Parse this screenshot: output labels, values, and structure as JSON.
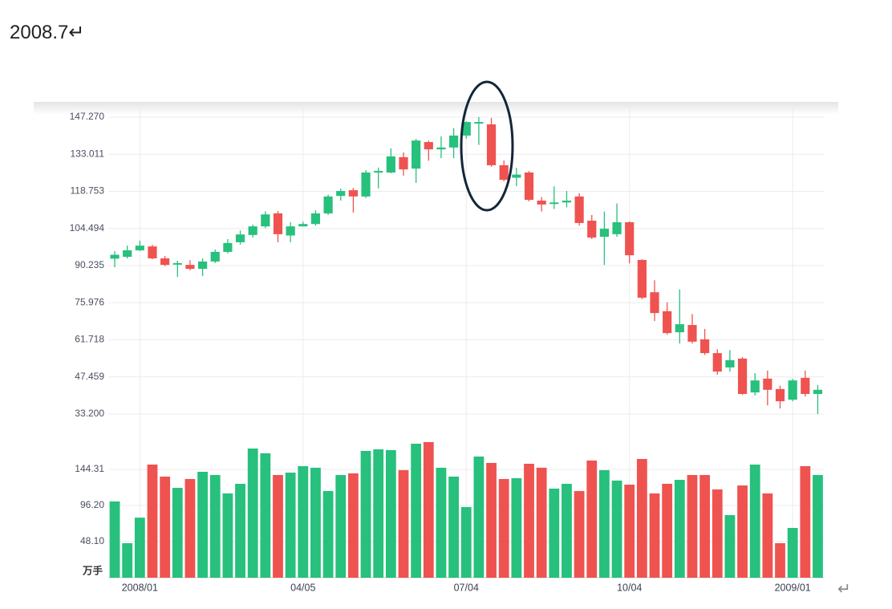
{
  "heading": "2008.7↵",
  "paragraph_mark": "↵",
  "chart_data": {
    "type": "candlestick",
    "categories": [
      null,
      null,
      "2008/01",
      null,
      null,
      null,
      null,
      null,
      null,
      null,
      null,
      null,
      null,
      null,
      null,
      "04/05",
      null,
      null,
      null,
      null,
      null,
      null,
      null,
      null,
      null,
      null,
      null,
      null,
      "07/04",
      null,
      null,
      null,
      null,
      null,
      null,
      null,
      null,
      null,
      null,
      null,
      null,
      "10/04",
      null,
      null,
      null,
      null,
      null,
      null,
      null,
      null,
      null,
      null,
      null,
      null,
      "2009/01",
      null,
      null
    ],
    "open": [
      92.9,
      93.6,
      96.1,
      97.6,
      93.0,
      90.6,
      90.5,
      89.0,
      91.8,
      95.5,
      99.2,
      102.0,
      105.3,
      110.3,
      101.8,
      105.3,
      106.2,
      110.3,
      117.0,
      119.2,
      116.8,
      126.0,
      126.0,
      131.9,
      127.5,
      137.7,
      134.9,
      135.6,
      140.2,
      144.8,
      144.5,
      128.8,
      124.0,
      126.0,
      115.2,
      113.9,
      114.5,
      116.8,
      107.5,
      101.3,
      102.3,
      106.9,
      92.4,
      80.0,
      72.7,
      64.6,
      67.4,
      61.9,
      56.6,
      51.1,
      54.5,
      41.5,
      46.8,
      42.8,
      38.7,
      47.1,
      40.9
    ],
    "high": [
      95.8,
      97.9,
      99.8,
      98.2,
      93.9,
      92.1,
      92.3,
      93.0,
      96.4,
      100.4,
      103.7,
      106.0,
      111.1,
      111.2,
      106.9,
      107.1,
      111.5,
      117.5,
      119.8,
      120.1,
      126.9,
      127.9,
      135.3,
      133.7,
      138.9,
      138.3,
      139.9,
      143.0,
      145.7,
      147.3,
      147.0,
      130.6,
      127.8,
      126.6,
      116.6,
      120.7,
      118.9,
      118.1,
      109.7,
      111.0,
      114.1,
      107.2,
      92.7,
      84.6,
      76.1,
      81.1,
      71.6,
      65.9,
      58.1,
      57.8,
      55.1,
      48.9,
      49.9,
      44.1,
      46.7,
      49.9,
      44.3
    ],
    "low": [
      89.6,
      93.0,
      95.8,
      92.7,
      90.0,
      85.9,
      88.4,
      86.2,
      91.2,
      94.9,
      98.3,
      101.0,
      104.6,
      99.2,
      99.2,
      105.3,
      105.6,
      109.7,
      115.2,
      110.6,
      116.2,
      119.9,
      125.7,
      124.8,
      122.0,
      130.5,
      131.5,
      131.5,
      139.0,
      136.6,
      128.2,
      122.6,
      120.7,
      114.9,
      111.0,
      112.0,
      112.6,
      105.6,
      100.4,
      90.5,
      101.3,
      91.1,
      77.3,
      68.9,
      63.7,
      60.3,
      60.3,
      55.9,
      48.3,
      49.5,
      40.6,
      40.3,
      36.5,
      35.3,
      38.1,
      39.9,
      33.2
    ],
    "close": [
      94.4,
      96.1,
      97.9,
      93.0,
      90.5,
      91.2,
      89.0,
      91.8,
      95.5,
      98.9,
      102.2,
      105.3,
      109.9,
      102.3,
      105.3,
      106.2,
      110.3,
      116.8,
      118.9,
      116.8,
      126.0,
      126.6,
      132.2,
      127.2,
      138.3,
      134.9,
      135.6,
      140.2,
      145.4,
      145.4,
      128.8,
      123.2,
      125.2,
      115.5,
      113.7,
      114.5,
      115.2,
      106.6,
      101.0,
      104.4,
      106.9,
      94.2,
      77.9,
      72.0,
      64.3,
      67.7,
      61.0,
      56.6,
      49.5,
      53.9,
      40.9,
      46.1,
      42.5,
      38.1,
      46.1,
      40.9,
      42.5
    ],
    "volume": [
      101.6,
      46.0,
      80.0,
      150.7,
      134.7,
      119.7,
      131.5,
      141.1,
      136.8,
      112.3,
      125.1,
      172.1,
      165.7,
      136.8,
      140.0,
      148.6,
      146.5,
      115.5,
      136.8,
      139.0,
      168.9,
      171.0,
      170.0,
      143.3,
      178.5,
      180.7,
      146.5,
      134.7,
      94.1,
      161.4,
      152.9,
      131.5,
      132.6,
      151.8,
      146.5,
      118.7,
      125.1,
      115.5,
      156.1,
      143.3,
      129.4,
      124.0,
      158.2,
      112.3,
      125.1,
      130.4,
      136.8,
      136.8,
      117.6,
      83.4,
      122.9,
      150.7,
      112.3,
      46.0,
      66.3,
      148.6,
      136.8
    ],
    "up_color": "#27c07d",
    "down_color": "#ef5350",
    "ylim": [
      29,
      150.7
    ],
    "yticks": [
      {
        "value": 33.2,
        "label": "33.200"
      },
      {
        "value": 47.459,
        "label": "47.459"
      },
      {
        "value": 61.718,
        "label": "61.718"
      },
      {
        "value": 75.976,
        "label": "75.976"
      },
      {
        "value": 90.235,
        "label": "90.235"
      },
      {
        "value": 104.494,
        "label": "104.494"
      },
      {
        "value": 118.753,
        "label": "118.753"
      },
      {
        "value": 133.011,
        "label": "133.011"
      },
      {
        "value": 147.27,
        "label": "147.270"
      }
    ],
    "volume_ylim": [
      0,
      192.4
    ],
    "volume_yticks": [
      {
        "value": 48.1,
        "label": "48.10"
      },
      {
        "value": 96.2,
        "label": "96.20"
      },
      144.31
    ],
    "volume_unit": "万手",
    "grid": true
  }
}
